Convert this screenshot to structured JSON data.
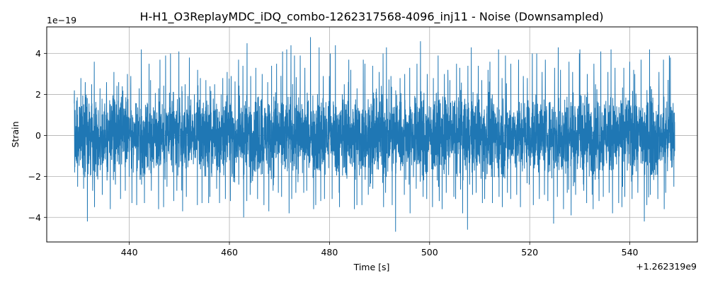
{
  "chart_data": {
    "type": "line",
    "title": "H-H1_O3ReplayMDC_iDQ_combo-1262317568-4096_inj11 - Noise (Downsampled)",
    "xlabel": "Time [s]",
    "ylabel": "Strain",
    "x_offset_label": "+1.262319e9",
    "y_scale_label": "1e−19",
    "xlim": [
      423.5,
      553.5
    ],
    "ylim": [
      -5.2,
      5.3
    ],
    "x_ticks": [
      440,
      460,
      480,
      500,
      520,
      540
    ],
    "x_tick_labels": [
      "440",
      "460",
      "480",
      "500",
      "520",
      "540"
    ],
    "y_ticks": [
      -4,
      -2,
      0,
      2,
      4
    ],
    "y_tick_labels": [
      "−4",
      "−2",
      "0",
      "2",
      "4"
    ],
    "grid": true,
    "line_color": "#1f77b4",
    "series": [
      {
        "x_start": 429.0,
        "x_end": 549.0,
        "envelope_upper": [
          2.2,
          2.8,
          2.6,
          2.5,
          3.6,
          2.3,
          2.6,
          3.1,
          2.6,
          2.4,
          3.0,
          2.9,
          2.3,
          4.2,
          3.5,
          2.7,
          2.3,
          3.7,
          3.9,
          4.0,
          4.1,
          2.4,
          2.5,
          3.8,
          3.2,
          2.8,
          2.7,
          2.4,
          2.5,
          2.8,
          3.1,
          2.9,
          3.7,
          3.4,
          4.5,
          2.9,
          3.3,
          3.0,
          2.6,
          3.4,
          3.5,
          4.1,
          4.2,
          4.4,
          3.9,
          3.9,
          3.3,
          4.8,
          4.3,
          2.9,
          2.9,
          4.0,
          4.4,
          2.5,
          3.7,
          3.2,
          2.3,
          3.7,
          3.5,
          3.4,
          3.1,
          4.0,
          4.3,
          2.9,
          2.2,
          2.8,
          3.0,
          3.3,
          3.5,
          4.6,
          3.0,
          2.8,
          3.9,
          3.0,
          3.2,
          2.7,
          3.5,
          3.3,
          3.4,
          4.3,
          3.4,
          2.7,
          3.2,
          3.6,
          4.2,
          2.8,
          3.9,
          3.5,
          3.7,
          2.9,
          2.8,
          4.0,
          4.0,
          3.1,
          3.7,
          3.3,
          4.3,
          3.2,
          3.6,
          3.1,
          4.0,
          4.2,
          3.0,
          3.5,
          2.5,
          4.1,
          3.1,
          4.2,
          3.3,
          3.3,
          3.6,
          3.2,
          3.0,
          3.7,
          4.2,
          2.4,
          3.1,
          3.7,
          3.9,
          3.8
        ],
        "envelope_lower": [
          -2.5,
          -2.6,
          -4.2,
          -2.7,
          -3.5,
          -2.9,
          -2.2,
          -3.6,
          -2.4,
          -3.1,
          -2.7,
          -3.3,
          -3.4,
          -2.4,
          -3.3,
          -2.7,
          -3.6,
          -3.5,
          -2.5,
          -3.2,
          -2.7,
          -3.7,
          -3.0,
          -2.6,
          -3.4,
          -3.3,
          -3.3,
          -3.0,
          -2.6,
          -3.3,
          -3.1,
          -3.2,
          -2.4,
          -4.0,
          -3.2,
          -2.9,
          -3.1,
          -3.4,
          -3.7,
          -2.7,
          -2.8,
          -3.0,
          -3.8,
          -3.1,
          -2.8,
          -2.8,
          -2.7,
          -3.6,
          -3.4,
          -3.2,
          -3.1,
          -3.1,
          -2.8,
          -3.5,
          -2.8,
          -3.6,
          -3.4,
          -3.4,
          -2.9,
          -2.6,
          -3.9,
          -3.5,
          -2.8,
          -3.4,
          -4.7,
          -2.9,
          -2.4,
          -3.8,
          -2.6,
          -3.0,
          -3.1,
          -3.5,
          -3.2,
          -3.6,
          -2.8,
          -3.0,
          -3.1,
          -3.8,
          -4.6,
          -2.9,
          -2.8,
          -3.3,
          -3.1,
          -3.3,
          -3.0,
          -3.5,
          -2.8,
          -3.1,
          -2.9,
          -3.5,
          -2.4,
          -3.4,
          -3.1,
          -2.9,
          -3.2,
          -4.3,
          -3.0,
          -3.6,
          -2.8,
          -3.9,
          -2.9,
          -2.7,
          -3.3,
          -3.6,
          -3.2,
          -3.0,
          -2.8,
          -3.8,
          -3.3,
          -3.5,
          -3.0,
          -3.1,
          -2.8,
          -4.2,
          -3.4,
          -2.9,
          -3.1,
          -3.6,
          -2.8,
          -2.5
        ]
      }
    ]
  }
}
